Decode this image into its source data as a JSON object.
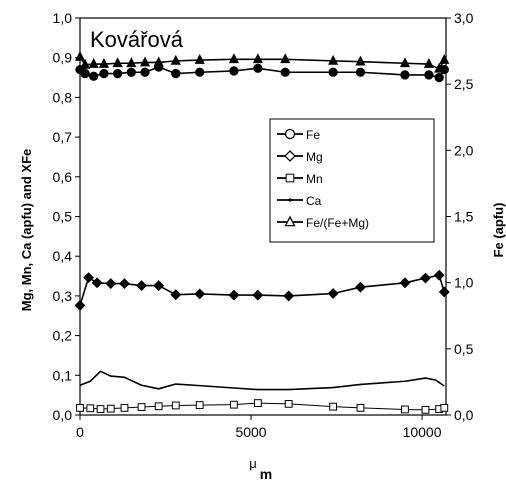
{
  "chart_data": {
    "type": "line",
    "title": "Kovářová",
    "xlabel_top": "μ",
    "xlabel_bottom": "m",
    "ylabel_left": "Mg, Mn, Ca (apfu) and XFe",
    "ylabel_right": "Fe (apfu)",
    "xlim": [
      0,
      10700
    ],
    "ylim_left": [
      0.0,
      1.0
    ],
    "ylim_right": [
      0.0,
      3.0
    ],
    "x_ticks": [
      "0",
      "5000",
      "10000"
    ],
    "y_left_ticks": [
      "0,0",
      "0,1",
      "0,2",
      "0,3",
      "0,4",
      "0,5",
      "0,6",
      "0,7",
      "0,8",
      "0,9",
      "1,0"
    ],
    "y_right_ticks": [
      "0,0",
      "0,5",
      "1,0",
      "1,5",
      "2,0",
      "2,5",
      "3,0"
    ],
    "legend": [
      {
        "name": "Fe",
        "marker": "circle-open"
      },
      {
        "name": "Mg",
        "marker": "diamond-open"
      },
      {
        "name": "Mn",
        "marker": "square-open"
      },
      {
        "name": "Ca",
        "marker": "dot"
      },
      {
        "name": "Fe/(Fe+Mg)",
        "marker": "triangle-open"
      }
    ],
    "series": [
      {
        "name": "Fe",
        "axis": "right",
        "marker": "circle-filled",
        "x": [
          0,
          150,
          400,
          700,
          1100,
          1500,
          1900,
          2300,
          2800,
          3500,
          4500,
          5200,
          6000,
          7400,
          8200,
          9500,
          10200,
          10500,
          10650
        ],
        "y": [
          2.61,
          2.58,
          2.56,
          2.58,
          2.58,
          2.59,
          2.59,
          2.63,
          2.58,
          2.59,
          2.6,
          2.62,
          2.59,
          2.59,
          2.59,
          2.57,
          2.57,
          2.55,
          2.61
        ]
      },
      {
        "name": "Fe/(Fe+Mg)",
        "axis": "left",
        "marker": "triangle-filled",
        "x": [
          0,
          150,
          400,
          700,
          1100,
          1500,
          1900,
          2300,
          2800,
          3500,
          4500,
          5200,
          6000,
          7400,
          8200,
          9500,
          10200,
          10500,
          10650
        ],
        "y": [
          0.902,
          0.882,
          0.884,
          0.884,
          0.886,
          0.886,
          0.888,
          0.888,
          0.892,
          0.894,
          0.896,
          0.896,
          0.896,
          0.892,
          0.89,
          0.886,
          0.884,
          0.872,
          0.894
        ]
      },
      {
        "name": "Mg",
        "axis": "left",
        "marker": "diamond-filled",
        "x": [
          0,
          250,
          500,
          900,
          1300,
          1800,
          2300,
          2800,
          3500,
          4500,
          5200,
          6100,
          7400,
          8200,
          9500,
          10100,
          10500,
          10650
        ],
        "y": [
          0.276,
          0.346,
          0.333,
          0.331,
          0.331,
          0.326,
          0.326,
          0.303,
          0.305,
          0.302,
          0.302,
          0.3,
          0.306,
          0.322,
          0.333,
          0.345,
          0.352,
          0.31
        ]
      },
      {
        "name": "Ca",
        "axis": "left",
        "marker": "none",
        "x": [
          0,
          300,
          600,
          900,
          1300,
          1800,
          2300,
          2800,
          3500,
          4500,
          5200,
          6100,
          7400,
          8200,
          9500,
          10100,
          10400,
          10650
        ],
        "y": [
          0.075,
          0.085,
          0.11,
          0.098,
          0.095,
          0.075,
          0.066,
          0.078,
          0.074,
          0.068,
          0.064,
          0.064,
          0.069,
          0.077,
          0.085,
          0.093,
          0.088,
          0.073
        ]
      },
      {
        "name": "Mn",
        "axis": "left",
        "marker": "square-open",
        "x": [
          0,
          300,
          600,
          900,
          1300,
          1800,
          2300,
          2800,
          3500,
          4500,
          5200,
          6100,
          7400,
          8200,
          9500,
          10100,
          10500,
          10650
        ],
        "y": [
          0.018,
          0.017,
          0.015,
          0.016,
          0.018,
          0.02,
          0.022,
          0.024,
          0.025,
          0.026,
          0.03,
          0.028,
          0.021,
          0.018,
          0.014,
          0.013,
          0.015,
          0.018
        ]
      }
    ]
  }
}
